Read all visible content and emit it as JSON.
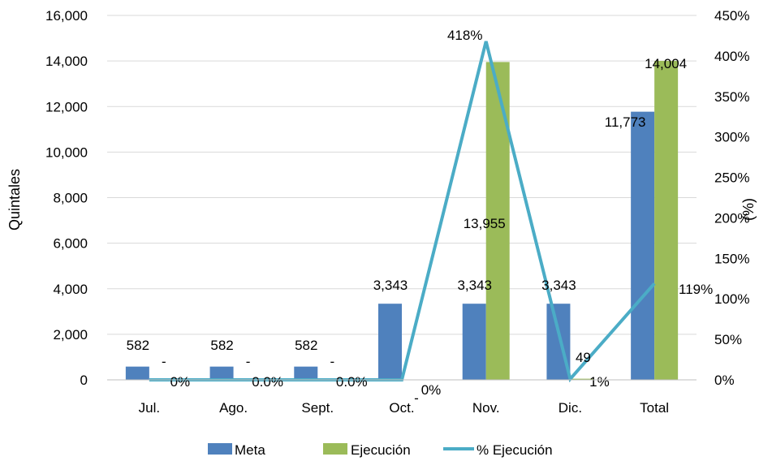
{
  "chart_data": {
    "type": "bar",
    "categories": [
      "Jul.",
      "Ago.",
      "Sept.",
      "Oct.",
      "Nov.",
      "Dic.",
      "Total"
    ],
    "series": [
      {
        "name": "Meta",
        "kind": "bar",
        "axis": "left",
        "color": "#4F81BD",
        "values": [
          582,
          582,
          582,
          3343,
          3343,
          3343,
          11773
        ],
        "labels": [
          "582",
          "582",
          "582",
          "3,343",
          "3,343",
          "3,343",
          "11,773"
        ]
      },
      {
        "name": "Ejecución",
        "kind": "bar",
        "axis": "left",
        "color": "#9BBB59",
        "values": [
          0,
          0,
          0,
          0,
          13955,
          49,
          14004
        ],
        "labels": [
          "-",
          "-",
          "-",
          "-",
          "13,955",
          "49",
          "14,004"
        ]
      },
      {
        "name": "% Ejecución",
        "kind": "line",
        "axis": "right",
        "color": "#4BACC6",
        "values": [
          0,
          0,
          0,
          0,
          418,
          1,
          119
        ],
        "labels": [
          "0%",
          "0.0%",
          "0.0%",
          "0%",
          "418%",
          "1%",
          "119%"
        ]
      }
    ],
    "ylabel": "Quintales",
    "y2label": "(%)",
    "ylim": [
      0,
      16000
    ],
    "y2lim": [
      0,
      450
    ],
    "yticks": [
      "0",
      "2,000",
      "4,000",
      "6,000",
      "8,000",
      "10,000",
      "12,000",
      "14,000",
      "16,000"
    ],
    "y2ticks": [
      "0%",
      "50%",
      "100%",
      "150%",
      "200%",
      "250%",
      "300%",
      "350%",
      "400%",
      "450%"
    ],
    "grid": true,
    "legend": "bottom"
  }
}
